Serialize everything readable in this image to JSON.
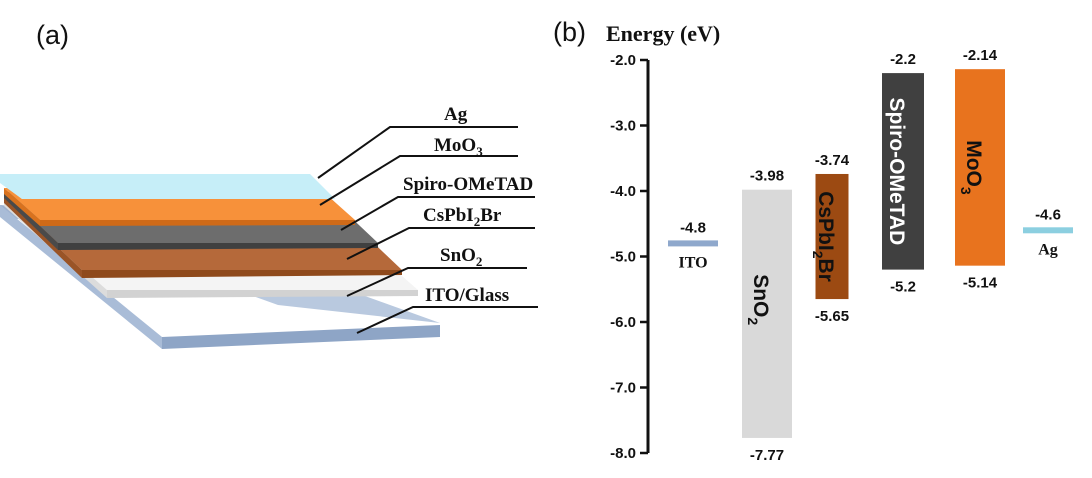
{
  "panel_a": {
    "label": "(a)",
    "layers": [
      {
        "key": "ag",
        "name": "Ag",
        "color": "#bfe9f5"
      },
      {
        "key": "moo3",
        "name": "MoO",
        "sub": "3",
        "color": "#f7913a"
      },
      {
        "key": "spiro",
        "name": "Spiro-OMeTAD",
        "color": "#6d6d6d"
      },
      {
        "key": "cspbi2br",
        "name": "CsPbI",
        "sub": "2",
        "tail": "Br",
        "color": "#b5693a"
      },
      {
        "key": "sno2",
        "name": "SnO",
        "sub": "2",
        "color": "#f2f2f2"
      },
      {
        "key": "ito",
        "name": "ITO/Glass",
        "color": "#b9c9df"
      }
    ]
  },
  "panel_b": {
    "label": "(b)",
    "axis_title": "Energy (eV)",
    "ticks": [
      "-2.0",
      "-3.0",
      "-4.0",
      "-5.0",
      "-6.0",
      "-7.0",
      "-8.0"
    ]
  },
  "chart_data": {
    "type": "energy-level-diagram",
    "ylabel": "Energy (eV)",
    "ylim": [
      -8.0,
      -2.0
    ],
    "levels": [
      {
        "key": "ito",
        "name": "ITO",
        "type": "line",
        "value": -4.8,
        "value_label": "-4.8",
        "color": "#8fa8cc"
      },
      {
        "key": "sno2",
        "name": "SnO",
        "sub": "2",
        "type": "bar",
        "top": -3.98,
        "bottom": -7.77,
        "top_label": "-3.98",
        "bottom_label": "-7.77",
        "color": "#d9d9d9",
        "text_color": "#111111"
      },
      {
        "key": "cspbi2br",
        "name": "CsPbI",
        "sub": "2",
        "tail": "Br",
        "type": "bar",
        "top": -3.74,
        "bottom": -5.65,
        "top_label": "-3.74",
        "bottom_label": "-5.65",
        "color": "#9c4a12",
        "text_color": "#111111"
      },
      {
        "key": "spiro",
        "name": "Spiro-OMeTAD",
        "type": "bar",
        "top": -2.2,
        "bottom": -5.2,
        "top_label": "-2.2",
        "bottom_label": "-5.2",
        "color": "#404040",
        "text_color": "#ffffff"
      },
      {
        "key": "moo3",
        "name": "MoO",
        "sub": "3",
        "type": "bar",
        "top": -2.14,
        "bottom": -5.14,
        "top_label": "-2.14",
        "bottom_label": "-5.14",
        "color": "#e8731e",
        "text_color": "#111111"
      },
      {
        "key": "ag",
        "name": "Ag",
        "type": "line",
        "value": -4.6,
        "value_label": "-4.6",
        "color": "#8ccfe0"
      }
    ]
  }
}
